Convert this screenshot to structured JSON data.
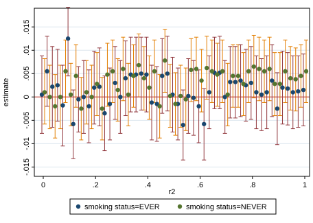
{
  "chart_data": {
    "type": "scatter",
    "title": "",
    "xlabel": "r2",
    "ylabel": "estimate",
    "xlim": [
      0,
      1
    ],
    "ylim": [
      -0.017,
      0.019
    ],
    "xticks": [
      0,
      0.2,
      0.4,
      0.6,
      0.8,
      1
    ],
    "xtick_labels": [
      "0",
      ".2",
      ".4",
      ".6",
      ".8",
      "1"
    ],
    "yticks": [
      -0.015,
      -0.01,
      -0.005,
      0,
      0.005,
      0.01,
      0.015
    ],
    "ytick_labels": [
      "-.015",
      "-.01",
      "-.005",
      "0",
      ".005",
      ".01",
      ".015"
    ],
    "grid": true,
    "reference_line": 0,
    "legend_position": "bottom",
    "colors": {
      "plot_background": "#ffffff",
      "outer_background": "#ffffff",
      "grid": "#dde6ee",
      "zero_line": "#c0392b",
      "ever_marker": "#1a476f",
      "ever_ci": "#90353b",
      "never_marker": "#55752f",
      "never_ci": "#e37e00"
    },
    "series": [
      {
        "name": "smoking status=EVER",
        "x": [
          0.0,
          0.02,
          0.04,
          0.06,
          0.08,
          0.1,
          0.12,
          0.14,
          0.16,
          0.18,
          0.2,
          0.22,
          0.24,
          0.26,
          0.28,
          0.3,
          0.32,
          0.34,
          0.36,
          0.38,
          0.4,
          0.42,
          0.44,
          0.46,
          0.48,
          0.5,
          0.52,
          0.54,
          0.56,
          0.58,
          0.6,
          0.62,
          0.64,
          0.66,
          0.68,
          0.7,
          0.72,
          0.74,
          0.76,
          0.78,
          0.8,
          0.82,
          0.84,
          0.86,
          0.88,
          0.9,
          0.92,
          0.94,
          0.96,
          0.98,
          1.0
        ],
        "y": [
          0.0005,
          0.0055,
          0.0022,
          0.0025,
          -0.0018,
          0.0125,
          -0.0058,
          -0.0005,
          0.0,
          -0.002,
          0.002,
          0.0022,
          -0.0035,
          -0.0015,
          0.003,
          0.0,
          0.004,
          0.0048,
          0.0048,
          0.005,
          0.0048,
          -0.0012,
          -0.0015,
          0.0045,
          0.005,
          0.0005,
          -0.0015,
          -0.006,
          0.0002,
          -0.0002,
          -0.002,
          -0.0058,
          0.001,
          0.0052,
          0.0052,
          0.0,
          0.0032,
          0.0032,
          0.0035,
          0.0025,
          0.003,
          0.001,
          0.0005,
          0.001,
          0.0035,
          -0.0025,
          0.002,
          0.0018,
          0.001,
          0.0012,
          0.0015
        ],
        "ci_low": [
          -0.0078,
          -0.002,
          -0.0065,
          -0.0052,
          -0.0105,
          0.0045,
          -0.0132,
          -0.0075,
          -0.0078,
          -0.0098,
          -0.0058,
          -0.0062,
          -0.0115,
          -0.0092,
          -0.0048,
          -0.0078,
          -0.004,
          -0.0032,
          -0.0032,
          -0.0028,
          -0.0032,
          -0.0092,
          -0.0095,
          -0.0035,
          -0.003,
          -0.0075,
          -0.0092,
          -0.0135,
          -0.0078,
          -0.0082,
          -0.0098,
          -0.0135,
          -0.0068,
          -0.0025,
          -0.0025,
          -0.0078,
          -0.0045,
          -0.0045,
          -0.0042,
          -0.0052,
          -0.0048,
          -0.0068,
          -0.0072,
          -0.0068,
          -0.0042,
          -0.0102,
          -0.0058,
          -0.006,
          -0.0068,
          -0.0065,
          -0.0062
        ],
        "ci_high": [
          0.0088,
          0.013,
          0.0108,
          0.0102,
          0.0068,
          0.0192,
          0.0015,
          0.0065,
          0.0078,
          0.0058,
          0.0098,
          0.0105,
          0.0045,
          0.0062,
          0.0108,
          0.0078,
          0.012,
          0.0128,
          0.0128,
          0.0128,
          0.0128,
          0.0068,
          0.0065,
          0.0125,
          0.013,
          0.0085,
          0.0062,
          0.0015,
          0.0082,
          0.0078,
          0.0058,
          0.0018,
          0.0088,
          0.0128,
          0.013,
          0.0078,
          0.0108,
          0.0108,
          0.0112,
          0.0102,
          0.0108,
          0.0088,
          0.0082,
          0.0088,
          0.0112,
          0.0052,
          0.0098,
          0.0095,
          0.0088,
          0.0088,
          0.0092
        ]
      },
      {
        "name": "smoking status=NEVER",
        "x": [
          0.0,
          0.02,
          0.04,
          0.06,
          0.08,
          0.1,
          0.12,
          0.14,
          0.16,
          0.18,
          0.2,
          0.22,
          0.24,
          0.26,
          0.28,
          0.3,
          0.32,
          0.34,
          0.36,
          0.38,
          0.4,
          0.42,
          0.44,
          0.46,
          0.48,
          0.5,
          0.52,
          0.54,
          0.56,
          0.58,
          0.6,
          0.62,
          0.64,
          0.66,
          0.68,
          0.7,
          0.72,
          0.74,
          0.76,
          0.78,
          0.8,
          0.82,
          0.84,
          0.86,
          0.88,
          0.9,
          0.92,
          0.94,
          0.96,
          0.98,
          1.0
        ],
        "y": [
          0.001,
          0.0,
          -0.002,
          0.0,
          0.0055,
          0.0005,
          0.0045,
          -0.0025,
          0.001,
          0.0,
          0.0028,
          -0.0025,
          0.0048,
          0.0055,
          0.0015,
          0.006,
          0.0005,
          0.0045,
          0.0068,
          0.004,
          0.002,
          0.0055,
          -0.002,
          0.0078,
          0.0002,
          -0.0015,
          0.0002,
          -0.0005,
          0.0058,
          0.006,
          0.0035,
          0.0062,
          0.0055,
          0.0048,
          0.0055,
          0.0005,
          0.0045,
          0.0045,
          0.0028,
          0.0055,
          0.0065,
          0.006,
          0.0055,
          0.006,
          0.0028,
          0.0028,
          0.0055,
          0.004,
          0.0038,
          0.0045,
          0.0055
        ],
        "ci_low": [
          -0.0058,
          -0.0068,
          -0.0088,
          -0.0068,
          -0.0012,
          -0.0062,
          -0.0022,
          -0.0092,
          -0.0058,
          -0.0068,
          -0.004,
          -0.0092,
          -0.002,
          -0.0012,
          -0.0052,
          -0.0008,
          -0.0062,
          -0.0022,
          0.0,
          -0.0028,
          -0.0048,
          -0.0012,
          -0.0088,
          0.001,
          -0.0065,
          -0.0082,
          -0.0065,
          -0.0072,
          -0.001,
          -0.0008,
          -0.0032,
          -0.0005,
          -0.0012,
          -0.002,
          -0.0012,
          -0.0062,
          -0.0022,
          -0.0022,
          -0.004,
          -0.0012,
          -0.0002,
          -0.0008,
          -0.0012,
          -0.0008,
          -0.004,
          -0.004,
          -0.0012,
          -0.0028,
          -0.003,
          -0.0022,
          -0.0012
        ],
        "ci_high": [
          0.0082,
          0.0068,
          0.0048,
          0.0068,
          0.0122,
          0.0072,
          0.0112,
          0.0042,
          0.0078,
          0.0068,
          0.0095,
          0.0042,
          0.0115,
          0.0122,
          0.0082,
          0.0128,
          0.0072,
          0.0112,
          0.0135,
          0.0108,
          0.0088,
          0.0122,
          0.0048,
          0.0145,
          0.007,
          0.0052,
          0.0068,
          0.0062,
          0.0125,
          0.0128,
          0.0102,
          0.013,
          0.0122,
          0.0115,
          0.0122,
          0.0072,
          0.0112,
          0.0112,
          0.0095,
          0.0122,
          0.0132,
          0.0128,
          0.0122,
          0.0128,
          0.0095,
          0.0095,
          0.0122,
          0.0108,
          0.0105,
          0.0112,
          0.0122
        ]
      }
    ],
    "legend": [
      {
        "label": "smoking status=EVER"
      },
      {
        "label": "smoking status=NEVER"
      }
    ]
  }
}
